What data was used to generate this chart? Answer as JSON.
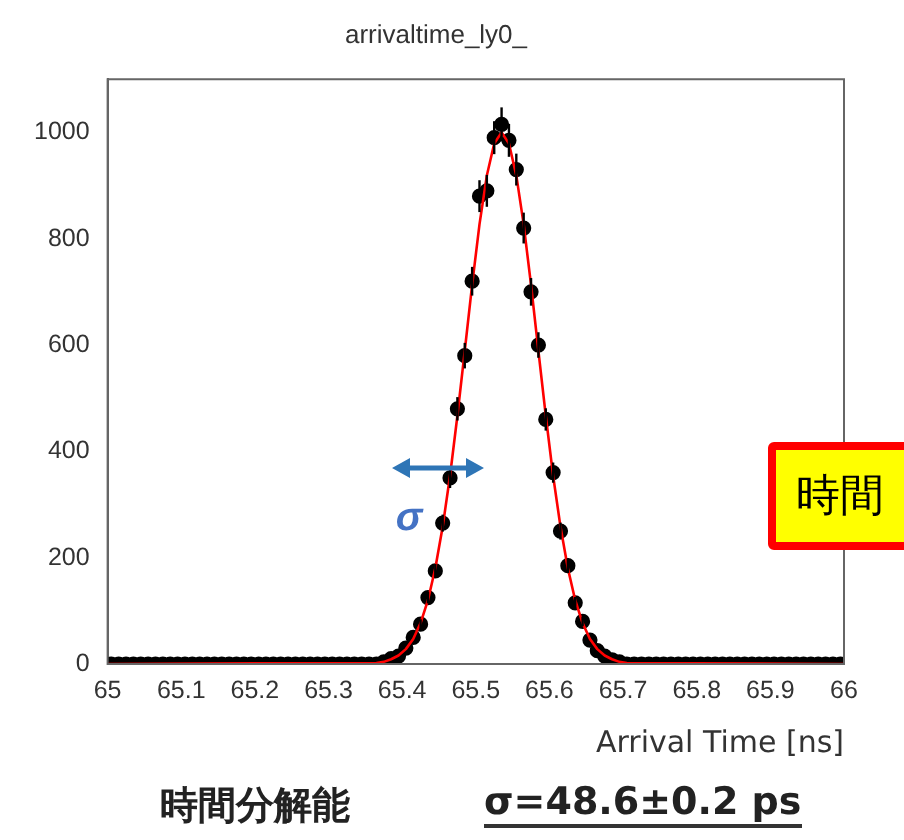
{
  "chart_data": {
    "type": "scatter",
    "title": "arrivaltime_ly0_",
    "xlabel": "Arrival Time [ns]",
    "xlim": [
      65,
      66
    ],
    "xticks": [
      65,
      65.1,
      65.2,
      65.3,
      65.4,
      65.5,
      65.6,
      65.7,
      65.8,
      65.9,
      66
    ],
    "ylim": [
      0,
      1100
    ],
    "yticks": [
      0,
      200,
      400,
      600,
      800,
      1000
    ],
    "grid": false,
    "legend": false,
    "series": [
      {
        "marker": "circle",
        "color": "#000000",
        "x": [
          65.005,
          65.015,
          65.025,
          65.035,
          65.045,
          65.055,
          65.065,
          65.075,
          65.085,
          65.095,
          65.105,
          65.115,
          65.125,
          65.135,
          65.145,
          65.155,
          65.165,
          65.175,
          65.185,
          65.195,
          65.205,
          65.215,
          65.225,
          65.235,
          65.245,
          65.255,
          65.265,
          65.275,
          65.285,
          65.295,
          65.305,
          65.315,
          65.325,
          65.335,
          65.345,
          65.355,
          65.365,
          65.375,
          65.385,
          65.395,
          65.405,
          65.415,
          65.425,
          65.435,
          65.445,
          65.455,
          65.465,
          65.475,
          65.485,
          65.495,
          65.505,
          65.515,
          65.525,
          65.535,
          65.545,
          65.555,
          65.565,
          65.575,
          65.585,
          65.595,
          65.605,
          65.615,
          65.625,
          65.635,
          65.645,
          65.655,
          65.665,
          65.675,
          65.685,
          65.695,
          65.705,
          65.715,
          65.725,
          65.735,
          65.745,
          65.755,
          65.765,
          65.775,
          65.785,
          65.795,
          65.805,
          65.815,
          65.825,
          65.835,
          65.845,
          65.855,
          65.865,
          65.875,
          65.885,
          65.895,
          65.905,
          65.915,
          65.925,
          65.935,
          65.945,
          65.955,
          65.965,
          65.975,
          65.985,
          65.995
        ],
        "values": [
          0,
          0,
          0,
          0,
          0,
          0,
          0,
          0,
          0,
          0,
          0,
          0,
          0,
          0,
          0,
          0,
          0,
          0,
          0,
          0,
          0,
          0,
          0,
          0,
          0,
          0,
          0,
          0,
          0,
          0,
          0,
          0,
          0,
          0,
          0,
          0,
          0,
          4,
          10,
          15,
          30,
          50,
          75,
          125,
          175,
          265,
          350,
          480,
          580,
          720,
          880,
          890,
          990,
          1015,
          985,
          930,
          820,
          700,
          600,
          460,
          360,
          250,
          185,
          115,
          80,
          45,
          25,
          15,
          8,
          4,
          0,
          0,
          0,
          0,
          0,
          0,
          0,
          0,
          0,
          0,
          0,
          0,
          0,
          0,
          0,
          0,
          0,
          0,
          0,
          0,
          0,
          0,
          0,
          0,
          0,
          0,
          0,
          0,
          0,
          0
        ],
        "errors": [
          null,
          null,
          null,
          null,
          null,
          null,
          null,
          null,
          null,
          null,
          null,
          null,
          null,
          null,
          null,
          null,
          null,
          null,
          null,
          null,
          null,
          null,
          null,
          null,
          null,
          null,
          null,
          null,
          null,
          null,
          null,
          null,
          null,
          null,
          null,
          null,
          null,
          null,
          null,
          null,
          null,
          null,
          9,
          11,
          13,
          16,
          19,
          22,
          24,
          27,
          30,
          30,
          31,
          32,
          31,
          30,
          29,
          26,
          24,
          21,
          19,
          16,
          14,
          11,
          9,
          null,
          null,
          null,
          null,
          null,
          null,
          null,
          null,
          null,
          null,
          null,
          null,
          null,
          null,
          null,
          null,
          null,
          null,
          null,
          null,
          null,
          null,
          null,
          null,
          null,
          null,
          null,
          null,
          null,
          null,
          null,
          null,
          null,
          null,
          null
        ]
      },
      {
        "type": "line",
        "color": "#ff0000",
        "x": [
          65,
          65.365,
          65.375,
          65.385,
          65.395,
          65.405,
          65.415,
          65.425,
          65.435,
          65.445,
          65.455,
          65.465,
          65.475,
          65.485,
          65.495,
          65.505,
          65.515,
          65.525,
          65.535,
          65.545,
          65.555,
          65.565,
          65.575,
          65.585,
          65.595,
          65.605,
          65.615,
          65.625,
          65.635,
          65.645,
          65.655,
          65.665,
          65.675,
          65.685,
          65.695,
          65.705,
          66
        ],
        "values": [
          0,
          2,
          4,
          9,
          16,
          28,
          47,
          77,
          120,
          180,
          258,
          354,
          467,
          589,
          713,
          827,
          919,
          979,
          1000,
          979,
          919,
          827,
          713,
          589,
          467,
          354,
          258,
          180,
          120,
          77,
          47,
          28,
          16,
          9,
          4,
          2,
          0
        ]
      }
    ],
    "annotations": [
      {
        "text": "σ",
        "x": 65.45,
        "y": 367
      },
      "時間分解能",
      "σ=48.6±0.2 ps",
      "時間"
    ]
  }
}
